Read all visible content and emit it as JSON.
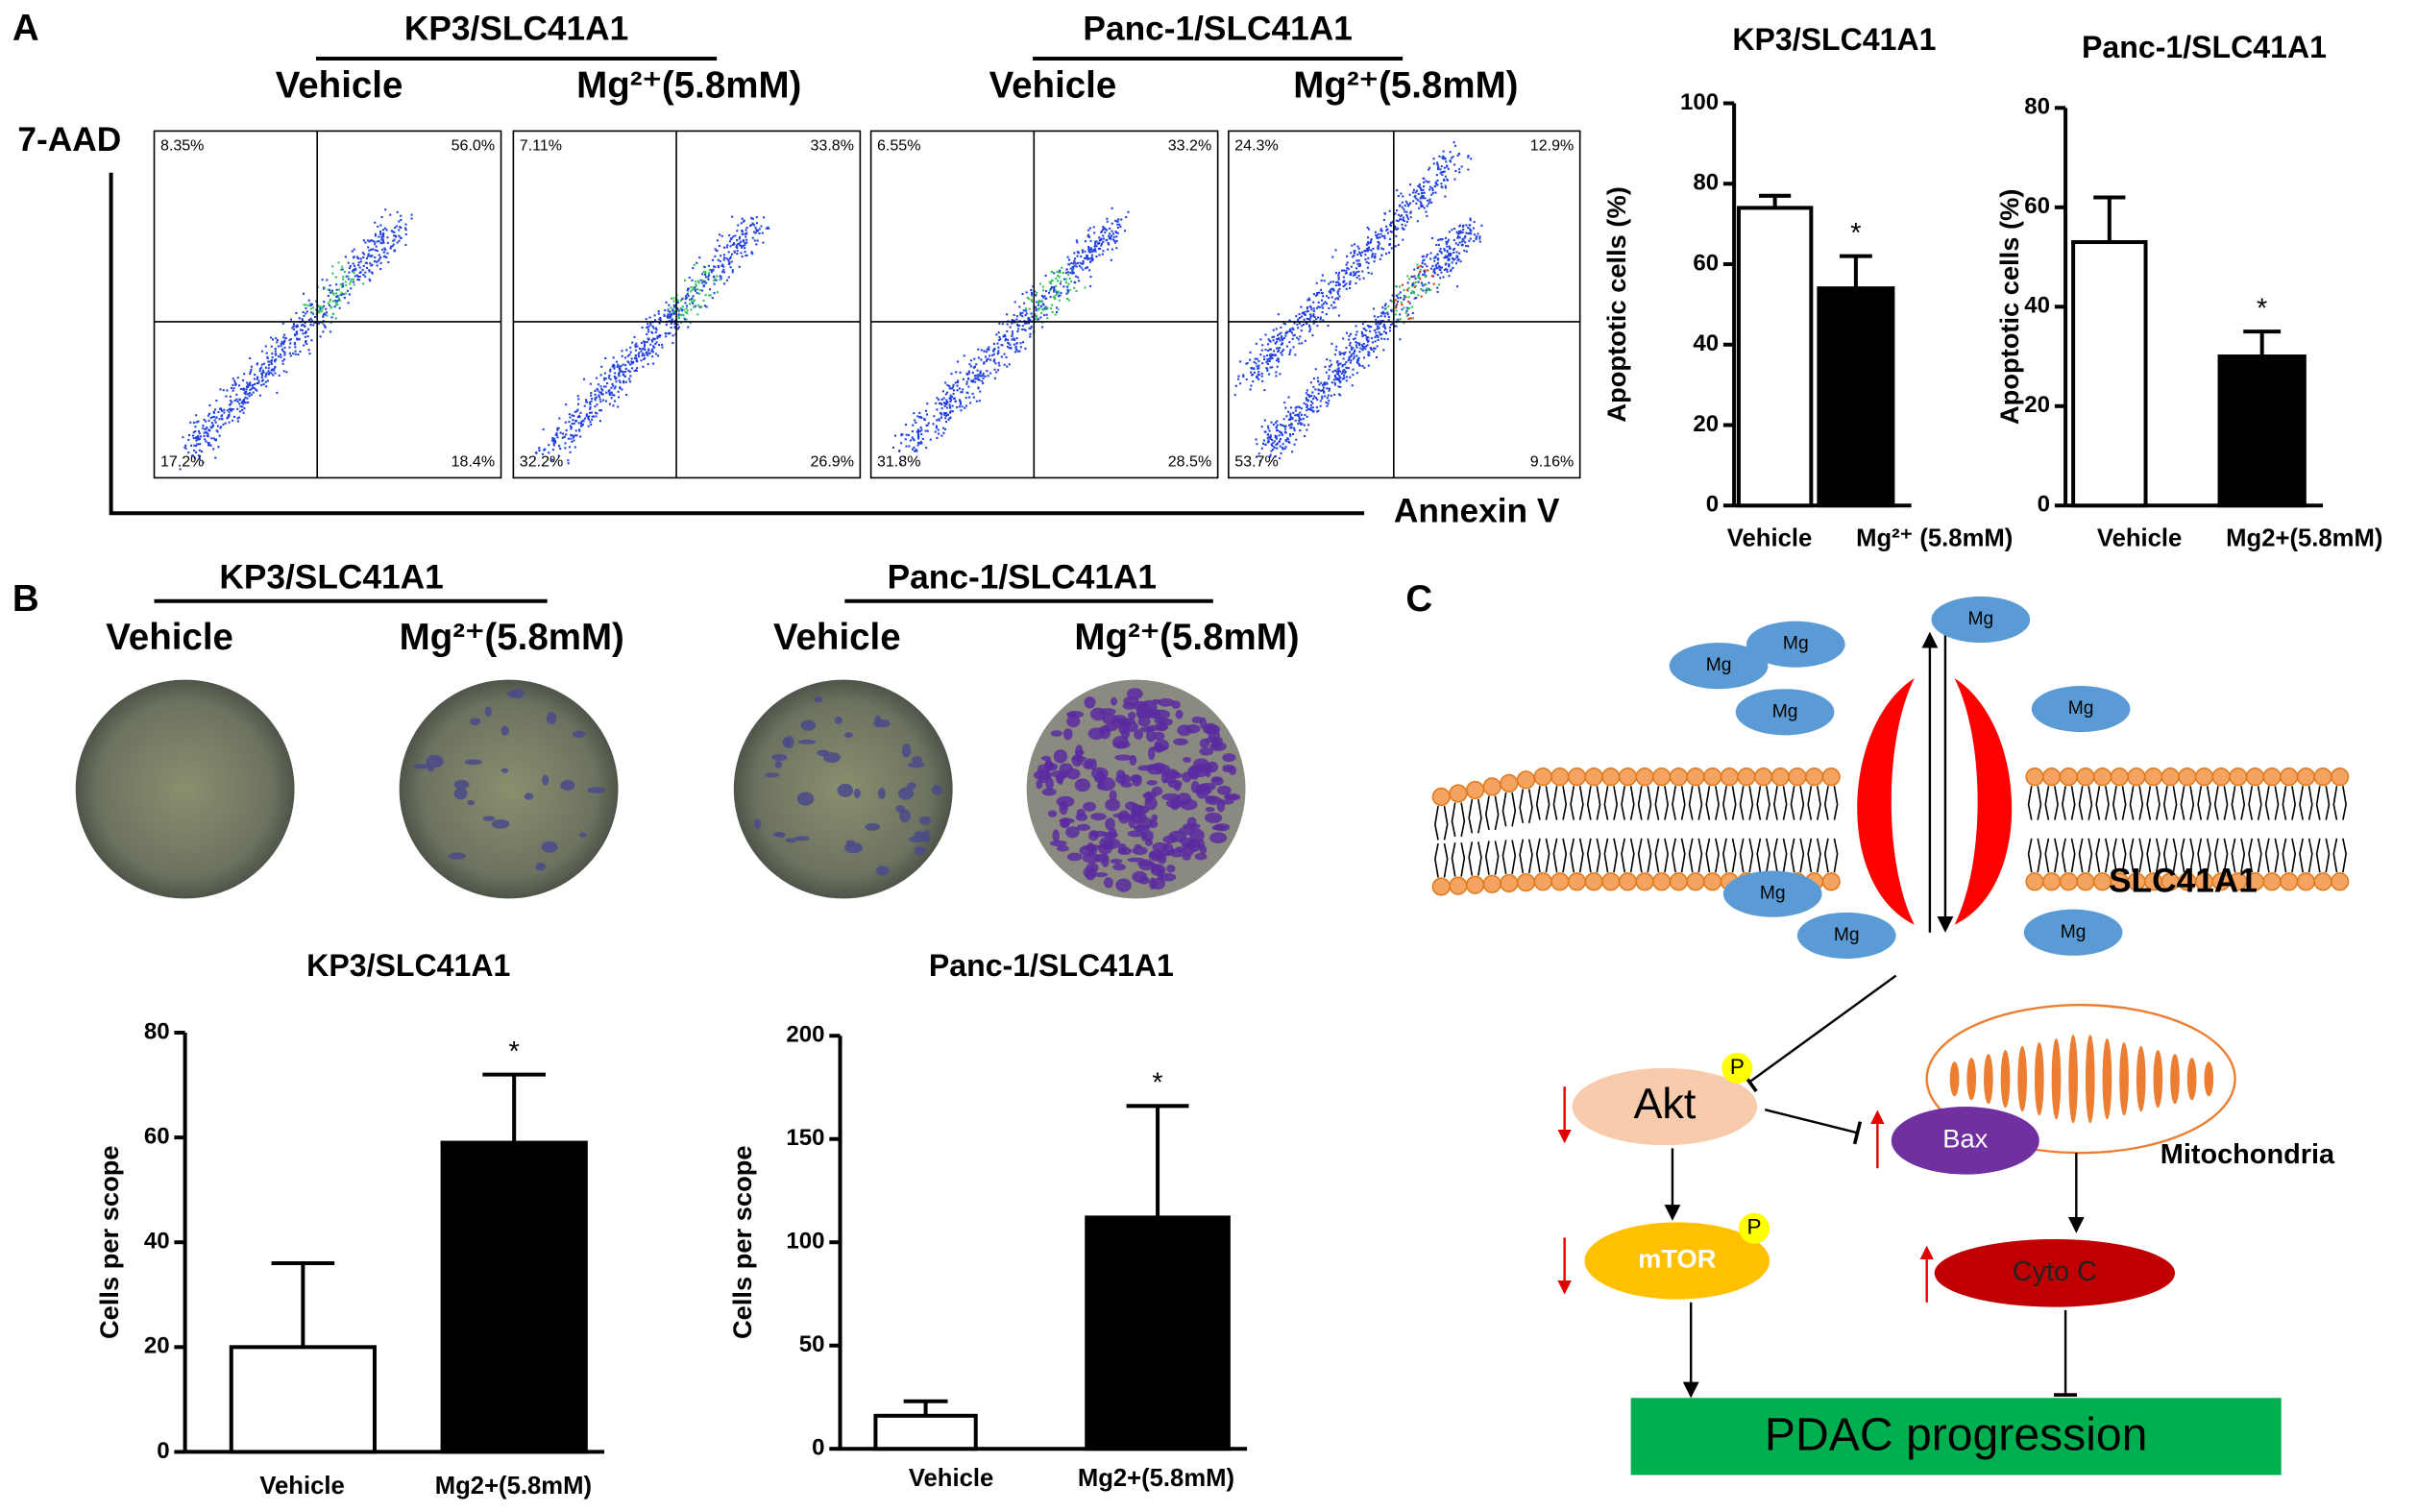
{
  "panel_labels": [
    "A",
    "B",
    "C"
  ],
  "flow": {
    "y_label": "7-AAD",
    "x_label": "Annexin V",
    "groups": [
      {
        "title": "KP3/SLC41A1",
        "conditions": [
          "Vehicle",
          "Mg²⁺(5.8mM)"
        ]
      },
      {
        "title": "Panc-1/SLC41A1",
        "conditions": [
          "Vehicle",
          "Mg²⁺(5.8mM)"
        ]
      }
    ],
    "panels": [
      {
        "quadrants": [
          "8.35%",
          "56.0%",
          "17.2%",
          "18.4%"
        ]
      },
      {
        "quadrants": [
          "7.11%",
          "33.8%",
          "32.2%",
          "26.9%"
        ]
      },
      {
        "quadrants": [
          "6.55%",
          "33.2%",
          "31.8%",
          "28.5%"
        ]
      },
      {
        "quadrants": [
          "24.3%",
          "12.9%",
          "53.7%",
          "9.16%"
        ]
      }
    ]
  },
  "invasion": {
    "groups": [
      {
        "title": "KP3/SLC41A1",
        "conditions": [
          "Vehicle",
          "Mg²⁺(5.8mM)"
        ]
      },
      {
        "title": "Panc-1/SLC41A1",
        "conditions": [
          "Vehicle",
          "Mg²⁺(5.8mM)"
        ]
      }
    ]
  },
  "chart_data": [
    {
      "type": "bar",
      "title": "KP3/SLC41A1",
      "ylabel": "Apoptotic cells (%)",
      "categories": [
        "Vehicle",
        "Mg²⁺ (5.8mM)"
      ],
      "values": [
        74,
        54
      ],
      "errors": [
        3,
        8
      ],
      "colors": [
        "#ffffff",
        "#000000"
      ],
      "ylim": [
        0,
        100
      ],
      "yticks": [
        0,
        20,
        40,
        60,
        80,
        100
      ],
      "annotations": [
        "*"
      ]
    },
    {
      "type": "bar",
      "title": "Panc-1/SLC41A1",
      "ylabel": "Apoptotic cells (%)",
      "categories": [
        "Vehicle",
        "Mg2+(5.8mM)"
      ],
      "values": [
        53,
        30
      ],
      "errors": [
        9,
        5
      ],
      "colors": [
        "#ffffff",
        "#000000"
      ],
      "ylim": [
        0,
        80
      ],
      "yticks": [
        0,
        20,
        40,
        60,
        80
      ],
      "annotations": [
        "*"
      ]
    },
    {
      "type": "bar",
      "title": "KP3/SLC41A1",
      "ylabel": "Cells per scope",
      "categories": [
        "Vehicle",
        "Mg2+(5.8mM)"
      ],
      "values": [
        20,
        59
      ],
      "errors": [
        16,
        13
      ],
      "colors": [
        "#ffffff",
        "#000000"
      ],
      "ylim": [
        0,
        80
      ],
      "yticks": [
        0,
        20,
        40,
        60,
        80
      ],
      "annotations": [
        "*"
      ]
    },
    {
      "type": "bar",
      "title": "Panc-1/SLC41A1",
      "ylabel": "Cells per scope",
      "categories": [
        "Vehicle",
        "Mg2+(5.8mM)"
      ],
      "values": [
        16,
        112
      ],
      "errors": [
        7,
        54
      ],
      "colors": [
        "#ffffff",
        "#000000"
      ],
      "ylim": [
        0,
        200
      ],
      "yticks": [
        0,
        50,
        100,
        150,
        200
      ],
      "annotations": [
        "*"
      ]
    }
  ],
  "diagram": {
    "ions": [
      "Mg",
      "Mg",
      "Mg",
      "Mg",
      "Mg",
      "Mg",
      "Mg",
      "Mg"
    ],
    "transporter": "SLC41A1",
    "akt": "Akt",
    "phospho": [
      "P",
      "P"
    ],
    "mtor": "mTOR",
    "bax": "Bax",
    "mito": "Mitochondria",
    "cytc": "Cyto C",
    "outcome": "PDAC progression"
  }
}
